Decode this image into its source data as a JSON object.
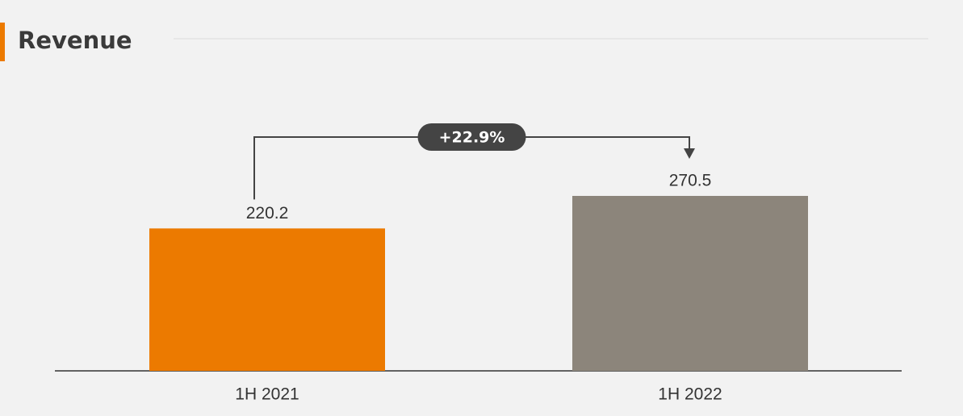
{
  "chart_data": {
    "type": "bar",
    "title": "Revenue",
    "categories": [
      "1H 2021",
      "1H 2022"
    ],
    "values": [
      220.2,
      270.5
    ],
    "colors": [
      "#ec7a00",
      "#8c857b"
    ],
    "annotation": "+22.9%"
  }
}
